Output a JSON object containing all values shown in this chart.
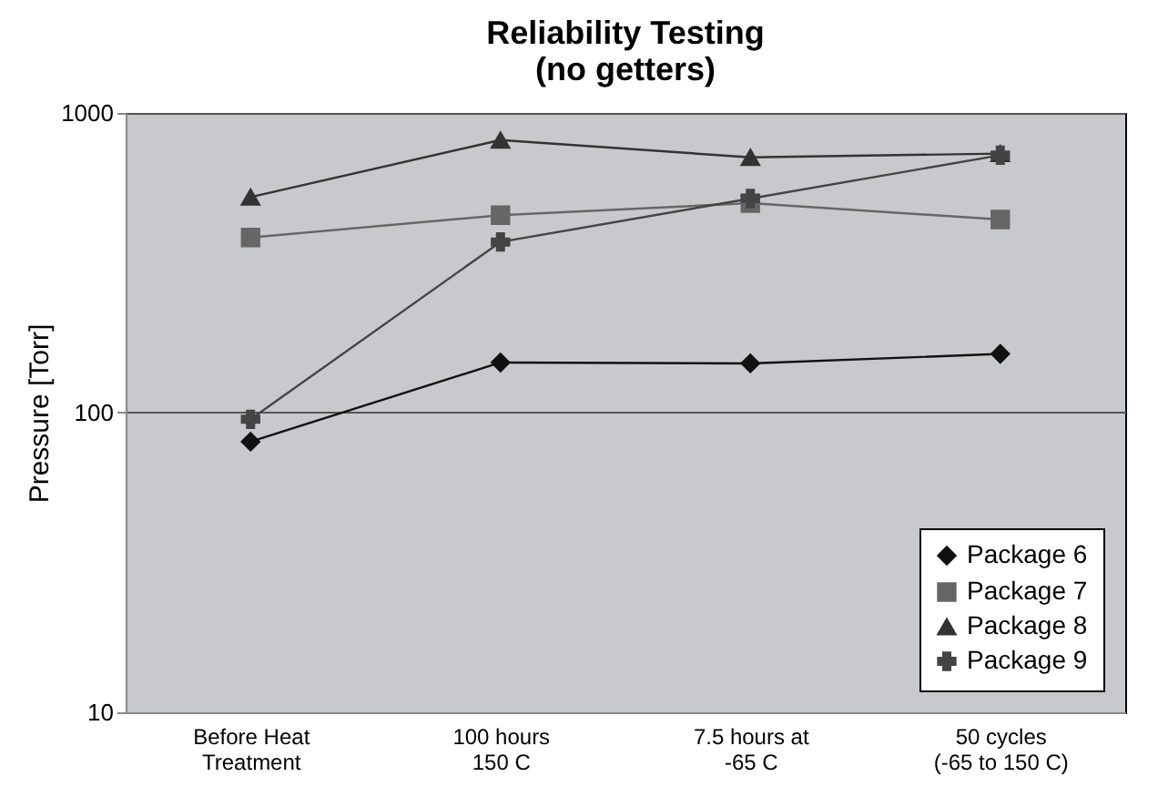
{
  "chart_data": {
    "type": "line",
    "title": "Reliability Testing",
    "subtitle": "(no getters)",
    "ylabel": "Pressure [Torr]",
    "categories": [
      "Before Heat\nTreatment",
      "100 hours\n150 C",
      "7.5 hours at\n-65 C",
      "50 cycles\n(-65 to 150 C)"
    ],
    "series": [
      {
        "name": "Package 6",
        "color": "#111111",
        "marker": "diamond",
        "values": [
          80,
          147,
          146,
          157
        ]
      },
      {
        "name": "Package 7",
        "color": "#666666",
        "marker": "square",
        "values": [
          384,
          456,
          500,
          441
        ]
      },
      {
        "name": "Package 8",
        "color": "#333333",
        "marker": "triangle",
        "values": [
          524,
          812,
          711,
          732
        ]
      },
      {
        "name": "Package 9",
        "color": "#444444",
        "marker": "cross",
        "values": [
          95,
          371,
          518,
          723
        ]
      }
    ],
    "log": true,
    "ylim": [
      10,
      1000
    ],
    "yticks": [
      10,
      100,
      1000
    ],
    "grid": "y",
    "legend": "bottom right"
  }
}
